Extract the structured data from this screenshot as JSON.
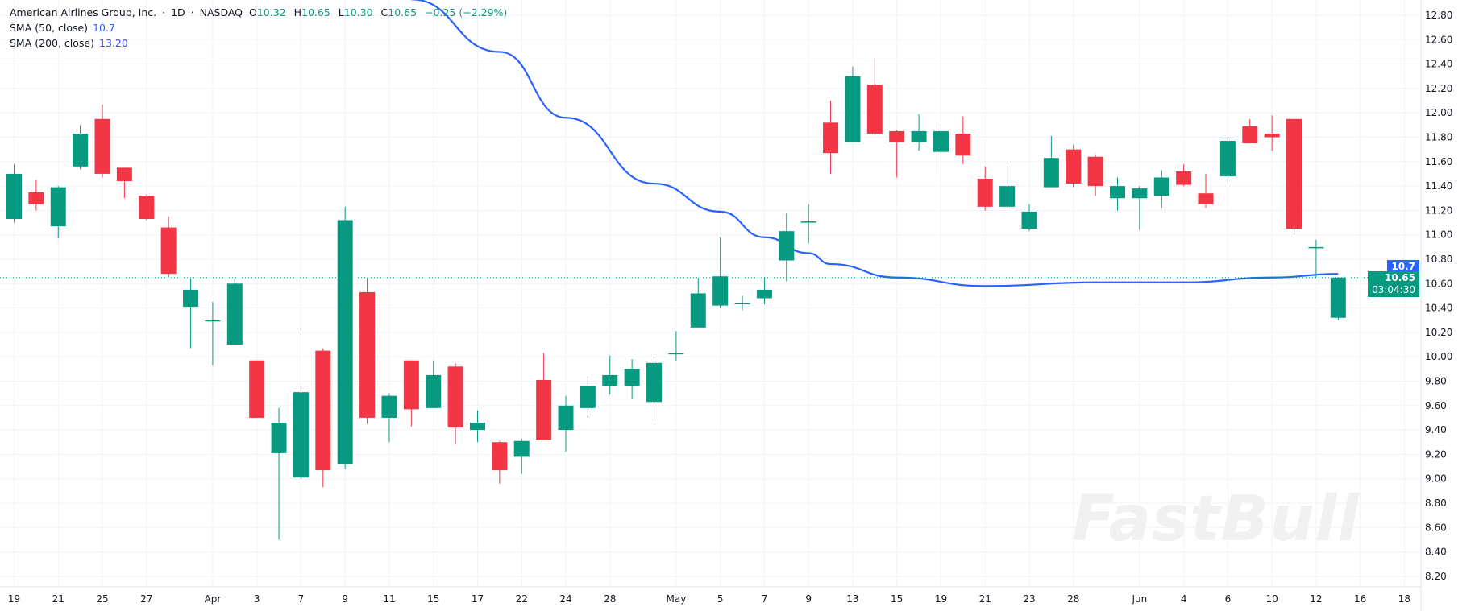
{
  "header": {
    "symbol_name": "American Airlines Group, Inc.",
    "interval": "1D",
    "exchange": "NASDAQ",
    "separator": "·",
    "open_label": "O",
    "open": "10.32",
    "high_label": "H",
    "high": "10.65",
    "low_label": "L",
    "low": "10.30",
    "close_label": "C",
    "close": "10.65",
    "change": "−0.25 (−2.29%)"
  },
  "indicators": [
    {
      "label": "SMA (50, close)",
      "value": "10.7",
      "color": "#2962ff"
    },
    {
      "label": "SMA (200, close)",
      "value": "13.20",
      "color": "#3f3fff"
    }
  ],
  "price_tags": {
    "sma_value": "10.7",
    "last_price": "10.65",
    "countdown": "03:04:30"
  },
  "watermark": "FastBull",
  "colors": {
    "up": "#089981",
    "down": "#f23645",
    "sma50": "#2962ff",
    "grid": "#f0f3fa"
  },
  "chart_data": {
    "type": "candlestick",
    "title": "American Airlines Group, Inc. · 1D · NASDAQ",
    "ylim": [
      8.1,
      12.9
    ],
    "y_ticks": [
      "12.80",
      "12.60",
      "12.40",
      "12.20",
      "12.00",
      "11.80",
      "11.60",
      "11.40",
      "11.20",
      "11.00",
      "10.80",
      "10.60",
      "10.40",
      "10.20",
      "10.00",
      "9.80",
      "9.60",
      "9.40",
      "9.20",
      "9.00",
      "8.80",
      "8.60",
      "8.40",
      "8.20"
    ],
    "x_ticks": [
      {
        "label": "19",
        "i": 0
      },
      {
        "label": "21",
        "i": 2
      },
      {
        "label": "25",
        "i": 4
      },
      {
        "label": "27",
        "i": 6
      },
      {
        "label": "Apr",
        "i": 9
      },
      {
        "label": "3",
        "i": 11
      },
      {
        "label": "7",
        "i": 13
      },
      {
        "label": "9",
        "i": 15
      },
      {
        "label": "11",
        "i": 17
      },
      {
        "label": "15",
        "i": 19
      },
      {
        "label": "17",
        "i": 21
      },
      {
        "label": "22",
        "i": 23
      },
      {
        "label": "24",
        "i": 25
      },
      {
        "label": "28",
        "i": 27
      },
      {
        "label": "May",
        "i": 30
      },
      {
        "label": "5",
        "i": 32
      },
      {
        "label": "7",
        "i": 34
      },
      {
        "label": "9",
        "i": 36
      },
      {
        "label": "13",
        "i": 38
      },
      {
        "label": "15",
        "i": 40
      },
      {
        "label": "19",
        "i": 42
      },
      {
        "label": "21",
        "i": 44
      },
      {
        "label": "23",
        "i": 46
      },
      {
        "label": "28",
        "i": 48
      },
      {
        "label": "Jun",
        "i": 51
      },
      {
        "label": "4",
        "i": 53
      },
      {
        "label": "6",
        "i": 55
      },
      {
        "label": "10",
        "i": 57
      },
      {
        "label": "12",
        "i": 59
      },
      {
        "label": "16",
        "i": 61
      },
      {
        "label": "18",
        "i": 63
      }
    ],
    "candles": [
      {
        "d": "Mar 19",
        "o": 11.13,
        "h": 11.58,
        "l": 11.1,
        "c": 11.5
      },
      {
        "d": "Mar 20",
        "o": 11.35,
        "h": 11.45,
        "l": 11.2,
        "c": 11.25
      },
      {
        "d": "Mar 21",
        "o": 11.07,
        "h": 11.4,
        "l": 10.97,
        "c": 11.39
      },
      {
        "d": "Mar 24",
        "o": 11.56,
        "h": 11.9,
        "l": 11.54,
        "c": 11.83
      },
      {
        "d": "Mar 25",
        "o": 11.95,
        "h": 12.07,
        "l": 11.47,
        "c": 11.5
      },
      {
        "d": "Mar 26",
        "o": 11.55,
        "h": 11.55,
        "l": 11.3,
        "c": 11.44
      },
      {
        "d": "Mar 27",
        "o": 11.32,
        "h": 11.33,
        "l": 11.12,
        "c": 11.13
      },
      {
        "d": "Mar 28",
        "o": 11.06,
        "h": 11.15,
        "l": 10.65,
        "c": 10.68
      },
      {
        "d": "Mar 31",
        "o": 10.41,
        "h": 10.64,
        "l": 10.07,
        "c": 10.55
      },
      {
        "d": "Apr 1",
        "o": 10.29,
        "h": 10.45,
        "l": 9.93,
        "c": 10.3
      },
      {
        "d": "Apr 2",
        "o": 10.1,
        "h": 10.64,
        "l": 10.1,
        "c": 10.6
      },
      {
        "d": "Apr 3",
        "o": 9.97,
        "h": 9.97,
        "l": 9.5,
        "c": 9.5
      },
      {
        "d": "Apr 4",
        "o": 9.21,
        "h": 9.58,
        "l": 8.5,
        "c": 9.46
      },
      {
        "d": "Apr 7",
        "o": 9.01,
        "h": 10.22,
        "l": 9.0,
        "c": 9.71
      },
      {
        "d": "Apr 8",
        "o": 10.05,
        "h": 10.07,
        "l": 8.93,
        "c": 9.07
      },
      {
        "d": "Apr 9",
        "o": 9.12,
        "h": 11.23,
        "l": 9.08,
        "c": 11.12
      },
      {
        "d": "Apr 10",
        "o": 10.53,
        "h": 10.65,
        "l": 9.45,
        "c": 9.5
      },
      {
        "d": "Apr 11",
        "o": 9.5,
        "h": 9.7,
        "l": 9.3,
        "c": 9.68
      },
      {
        "d": "Apr 14",
        "o": 9.97,
        "h": 9.97,
        "l": 9.43,
        "c": 9.57
      },
      {
        "d": "Apr 15",
        "o": 9.58,
        "h": 9.97,
        "l": 9.58,
        "c": 9.85
      },
      {
        "d": "Apr 16",
        "o": 9.92,
        "h": 9.95,
        "l": 9.28,
        "c": 9.42
      },
      {
        "d": "Apr 17",
        "o": 9.4,
        "h": 9.56,
        "l": 9.3,
        "c": 9.46
      },
      {
        "d": "Apr 21",
        "o": 9.3,
        "h": 9.31,
        "l": 8.96,
        "c": 9.07
      },
      {
        "d": "Apr 22",
        "o": 9.18,
        "h": 9.33,
        "l": 9.04,
        "c": 9.31
      },
      {
        "d": "Apr 23",
        "o": 9.81,
        "h": 10.03,
        "l": 9.32,
        "c": 9.32
      },
      {
        "d": "Apr 24",
        "o": 9.4,
        "h": 9.68,
        "l": 9.22,
        "c": 9.6
      },
      {
        "d": "Apr 25",
        "o": 9.58,
        "h": 9.84,
        "l": 9.5,
        "c": 9.76
      },
      {
        "d": "Apr 28",
        "o": 9.76,
        "h": 10.01,
        "l": 9.69,
        "c": 9.85
      },
      {
        "d": "Apr 29",
        "o": 9.76,
        "h": 9.98,
        "l": 9.65,
        "c": 9.9
      },
      {
        "d": "Apr 30",
        "o": 9.63,
        "h": 10.0,
        "l": 9.47,
        "c": 9.95
      },
      {
        "d": "May 1",
        "o": 10.02,
        "h": 10.21,
        "l": 9.97,
        "c": 10.03
      },
      {
        "d": "May 2",
        "o": 10.24,
        "h": 10.65,
        "l": 10.24,
        "c": 10.52
      },
      {
        "d": "May 5",
        "o": 10.42,
        "h": 10.98,
        "l": 10.4,
        "c": 10.66
      },
      {
        "d": "May 6",
        "o": 10.44,
        "h": 10.5,
        "l": 10.38,
        "c": 10.44
      },
      {
        "d": "May 7",
        "o": 10.48,
        "h": 10.65,
        "l": 10.43,
        "c": 10.55
      },
      {
        "d": "May 8",
        "o": 10.79,
        "h": 11.18,
        "l": 10.62,
        "c": 11.03
      },
      {
        "d": "May 9",
        "o": 11.1,
        "h": 11.25,
        "l": 10.93,
        "c": 11.11
      },
      {
        "d": "May 12",
        "o": 11.92,
        "h": 12.1,
        "l": 11.5,
        "c": 11.67
      },
      {
        "d": "May 13",
        "o": 11.76,
        "h": 12.38,
        "l": 11.76,
        "c": 12.3
      },
      {
        "d": "May 14",
        "o": 12.23,
        "h": 12.45,
        "l": 11.82,
        "c": 11.83
      },
      {
        "d": "May 15",
        "o": 11.85,
        "h": 11.86,
        "l": 11.47,
        "c": 11.76
      },
      {
        "d": "May 16",
        "o": 11.76,
        "h": 11.99,
        "l": 11.69,
        "c": 11.85
      },
      {
        "d": "May 19",
        "o": 11.68,
        "h": 11.92,
        "l": 11.5,
        "c": 11.85
      },
      {
        "d": "May 20",
        "o": 11.83,
        "h": 11.97,
        "l": 11.58,
        "c": 11.65
      },
      {
        "d": "May 21",
        "o": 11.46,
        "h": 11.56,
        "l": 11.2,
        "c": 11.23
      },
      {
        "d": "May 22",
        "o": 11.23,
        "h": 11.56,
        "l": 11.22,
        "c": 11.4
      },
      {
        "d": "May 23",
        "o": 11.05,
        "h": 11.25,
        "l": 11.03,
        "c": 11.19
      },
      {
        "d": "May 27",
        "o": 11.39,
        "h": 11.81,
        "l": 11.39,
        "c": 11.63
      },
      {
        "d": "May 28",
        "o": 11.7,
        "h": 11.74,
        "l": 11.39,
        "c": 11.42
      },
      {
        "d": "May 29",
        "o": 11.64,
        "h": 11.66,
        "l": 11.32,
        "c": 11.4
      },
      {
        "d": "May 30",
        "o": 11.3,
        "h": 11.47,
        "l": 11.2,
        "c": 11.4
      },
      {
        "d": "Jun 2",
        "o": 11.3,
        "h": 11.4,
        "l": 11.04,
        "c": 11.38
      },
      {
        "d": "Jun 3",
        "o": 11.32,
        "h": 11.53,
        "l": 11.22,
        "c": 11.47
      },
      {
        "d": "Jun 4",
        "o": 11.52,
        "h": 11.58,
        "l": 11.4,
        "c": 11.41
      },
      {
        "d": "Jun 5",
        "o": 11.34,
        "h": 11.5,
        "l": 11.22,
        "c": 11.25
      },
      {
        "d": "Jun 6",
        "o": 11.48,
        "h": 11.79,
        "l": 11.43,
        "c": 11.77
      },
      {
        "d": "Jun 9",
        "o": 11.89,
        "h": 11.95,
        "l": 11.75,
        "c": 11.75
      },
      {
        "d": "Jun 10",
        "o": 11.83,
        "h": 11.98,
        "l": 11.69,
        "c": 11.8
      },
      {
        "d": "Jun 11",
        "o": 11.95,
        "h": 11.95,
        "l": 11.0,
        "c": 11.05
      },
      {
        "d": "Jun 12",
        "o": 10.89,
        "h": 10.96,
        "l": 10.65,
        "c": 10.9
      },
      {
        "d": "Jun 13",
        "o": 10.32,
        "h": 10.65,
        "l": 10.3,
        "c": 10.65
      }
    ],
    "series": [
      {
        "name": "SMA (50, close)",
        "points": [
          {
            "i": 18,
            "v": 12.93
          },
          {
            "i": 22,
            "v": 12.5
          },
          {
            "i": 25,
            "v": 11.96
          },
          {
            "i": 29,
            "v": 11.42
          },
          {
            "i": 32,
            "v": 11.19
          },
          {
            "i": 34,
            "v": 10.98
          },
          {
            "i": 36,
            "v": 10.85
          },
          {
            "i": 37,
            "v": 10.76
          },
          {
            "i": 40,
            "v": 10.65
          },
          {
            "i": 44,
            "v": 10.58
          },
          {
            "i": 49,
            "v": 10.61
          },
          {
            "i": 53,
            "v": 10.61
          },
          {
            "i": 57,
            "v": 10.65
          },
          {
            "i": 60,
            "v": 10.68
          }
        ]
      }
    ],
    "last_price": 10.65
  }
}
